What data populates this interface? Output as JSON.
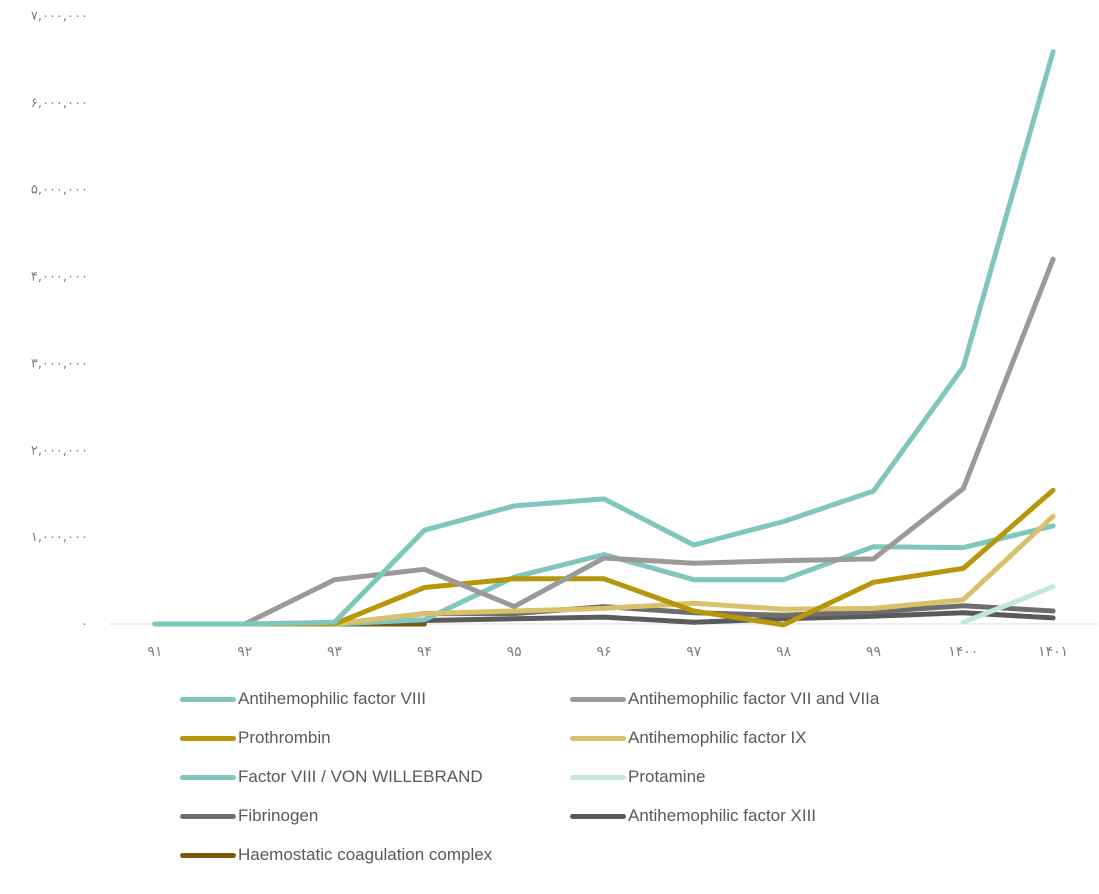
{
  "chart_data": {
    "type": "line",
    "title": "",
    "xlabel": "",
    "ylabel": "",
    "categories": [
      "۹۱",
      "۹۲",
      "۹۳",
      "۹۴",
      "۹۵",
      "۹۶",
      "۹۷",
      "۹۸",
      "۹۹",
      "۱۴۰۰",
      "۱۴۰۱"
    ],
    "y_tick_labels": [
      "۰",
      "۱,۰۰۰,۰۰۰",
      "۲,۰۰۰,۰۰۰",
      "۳,۰۰۰,۰۰۰",
      "۴,۰۰۰,۰۰۰",
      "۵,۰۰۰,۰۰۰",
      "۶,۰۰۰,۰۰۰",
      "۷,۰۰۰,۰۰۰"
    ],
    "ylim": [
      0,
      7000000
    ],
    "grid": false,
    "legend_position": "bottom",
    "series": [
      {
        "name": "Antihemophilic factor VIII",
        "color": "#7fc6bc",
        "values": [
          0,
          0,
          20000,
          1080000,
          1360000,
          1440000,
          910000,
          1180000,
          1530000,
          2960000,
          6590000
        ]
      },
      {
        "name": "Antihemophilic factor VII and VIIa",
        "color": "#9a9a9a",
        "values": [
          0,
          0,
          510000,
          630000,
          200000,
          760000,
          700000,
          730000,
          750000,
          1560000,
          4200000
        ]
      },
      {
        "name": "Prothrombin",
        "color": "#b8960c",
        "values": [
          0,
          0,
          0,
          420000,
          520000,
          520000,
          150000,
          -10000,
          480000,
          640000,
          1540000
        ]
      },
      {
        "name": "Antihemophilic factor IX",
        "color": "#d9c06b",
        "values": [
          0,
          0,
          0,
          120000,
          150000,
          180000,
          240000,
          170000,
          180000,
          280000,
          1240000
        ]
      },
      {
        "name": "Factor VIII / VON WILLEBRAND",
        "color": "#7fc6bc",
        "values": [
          0,
          0,
          0,
          50000,
          540000,
          800000,
          510000,
          510000,
          890000,
          880000,
          1130000
        ]
      },
      {
        "name": "Protamine",
        "color": "#c5e6e0",
        "values": [
          null,
          null,
          null,
          null,
          null,
          null,
          null,
          null,
          null,
          20000,
          430000
        ]
      },
      {
        "name": "Fibrinogen",
        "color": "#6e6e6e",
        "values": [
          0,
          0,
          0,
          120000,
          120000,
          200000,
          130000,
          100000,
          140000,
          210000,
          150000
        ]
      },
      {
        "name": "Antihemophilic factor XIII",
        "color": "#5a5a5a",
        "values": [
          0,
          0,
          0,
          40000,
          60000,
          80000,
          20000,
          60000,
          90000,
          130000,
          70000
        ]
      },
      {
        "name": "Haemostatic coagulation complex",
        "color": "#7a5a08",
        "values": [
          0,
          0,
          0,
          0,
          null,
          null,
          null,
          null,
          null,
          null,
          null
        ]
      }
    ]
  }
}
